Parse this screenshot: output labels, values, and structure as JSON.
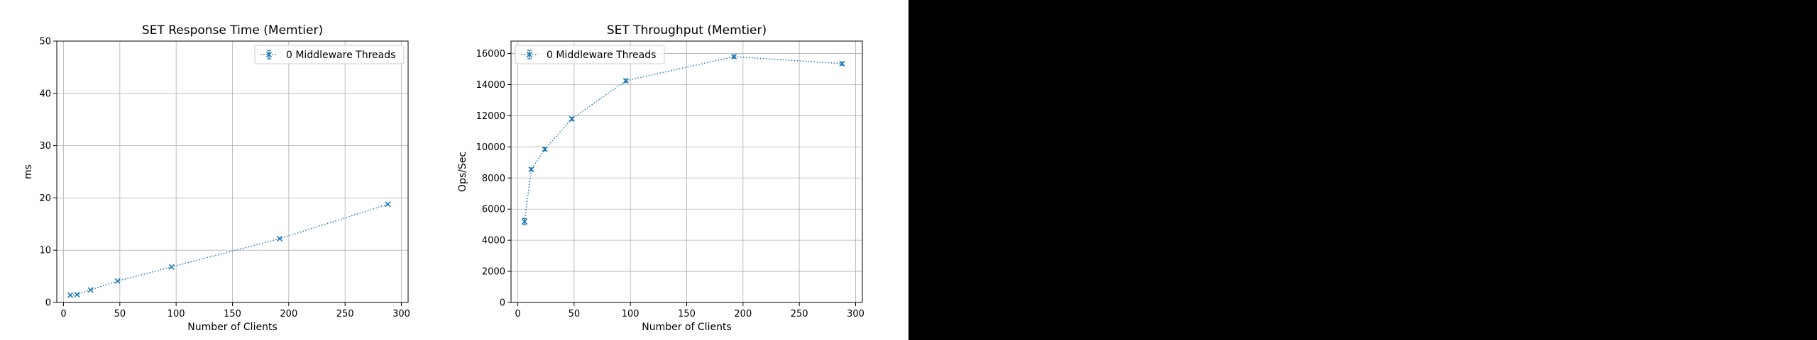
{
  "chart_data": [
    {
      "type": "line",
      "title": "SET Response Time (Memtier)",
      "xlabel": "Number of Clients",
      "ylabel": "ms",
      "xlim": [
        -6,
        306
      ],
      "ylim": [
        0,
        50
      ],
      "xticks": [
        0,
        50,
        100,
        150,
        200,
        250,
        300
      ],
      "yticks": [
        0,
        10,
        20,
        30,
        40,
        50
      ],
      "grid": true,
      "legend_position": "top-right",
      "series": [
        {
          "name": "0 Middleware Threads",
          "color": "#1f77b4",
          "marker": "x",
          "linestyle": "dotted",
          "x": [
            6,
            12,
            24,
            48,
            96,
            192,
            288
          ],
          "y": [
            1.4,
            1.5,
            2.4,
            4.1,
            6.8,
            12.2,
            18.8
          ]
        }
      ]
    },
    {
      "type": "line",
      "title": "SET Throughput (Memtier)",
      "xlabel": "Number of Clients",
      "ylabel": "Ops/Sec",
      "xlim": [
        -6,
        306
      ],
      "ylim": [
        0,
        16800
      ],
      "xticks": [
        0,
        50,
        100,
        150,
        200,
        250,
        300
      ],
      "yticks": [
        0,
        2000,
        4000,
        6000,
        8000,
        10000,
        12000,
        14000,
        16000
      ],
      "grid": true,
      "legend_position": "top-left",
      "series": [
        {
          "name": "0 Middleware Threads",
          "color": "#1f77b4",
          "marker": "x",
          "linestyle": "dotted",
          "x": [
            6,
            12,
            24,
            48,
            96,
            192,
            288
          ],
          "y": [
            5200,
            8550,
            9850,
            11800,
            14250,
            15800,
            15350
          ],
          "yerr": [
            200,
            100,
            100,
            100,
            100,
            100,
            100
          ]
        }
      ]
    }
  ]
}
